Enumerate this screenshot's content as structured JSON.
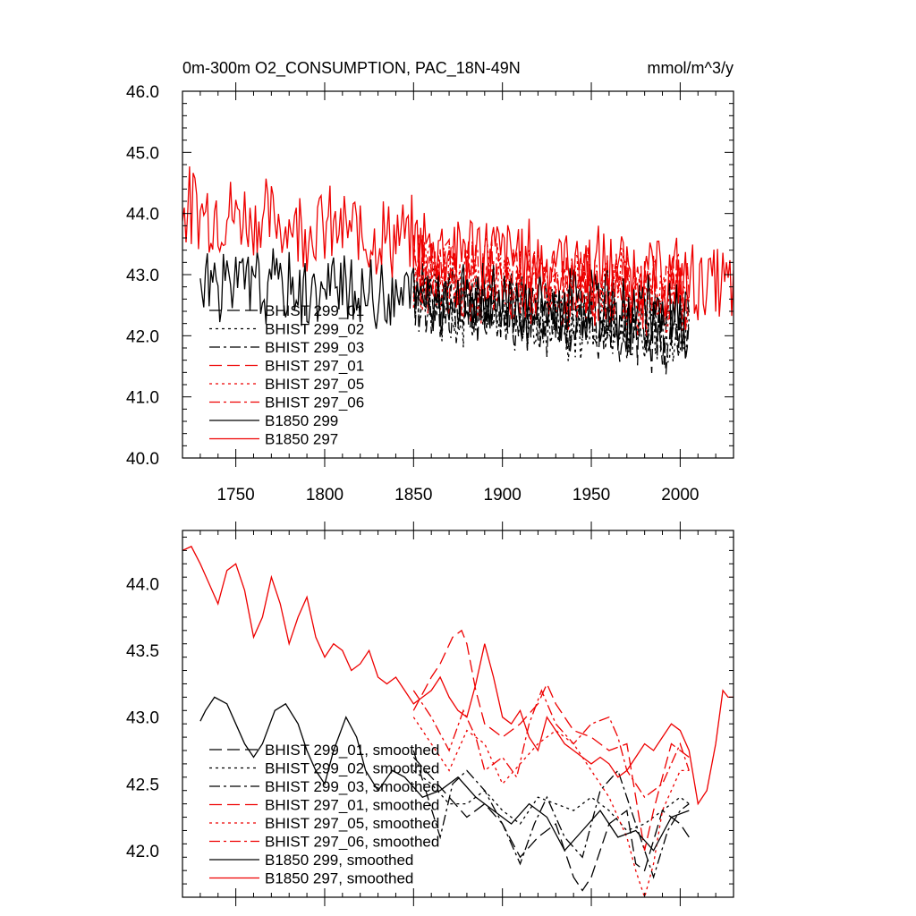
{
  "chart_data": [
    {
      "type": "line",
      "title_left": "0m-300m O2_CONSUMPTION, PAC_18N-49N",
      "title_right": "mmol/m^3/y",
      "xlim": [
        1720,
        2030
      ],
      "ylim": [
        40.0,
        46.0
      ],
      "yticks": [
        40.0,
        41.0,
        42.0,
        43.0,
        44.0,
        45.0,
        46.0
      ],
      "ytick_labels": [
        "40.0",
        "41.0",
        "42.0",
        "43.0",
        "44.0",
        "45.0",
        "46.0"
      ],
      "xticks": [
        1750,
        1800,
        1850,
        1900,
        1950,
        2000
      ],
      "xtick_labels": [
        "1750",
        "1800",
        "1850",
        "1900",
        "1950",
        "2000"
      ],
      "legend_position": "center-left",
      "series": [
        {
          "name": "BHIST 299_01",
          "color": "#000000",
          "dash": "dash",
          "x_start": 1850,
          "x_end": 2005,
          "base_start": 42.7,
          "base_end": 42.0,
          "amp": 0.55,
          "seed": 11
        },
        {
          "name": "BHIST 299_02",
          "color": "#000000",
          "dash": "dot",
          "x_start": 1850,
          "x_end": 2005,
          "base_start": 42.6,
          "base_end": 42.0,
          "amp": 0.55,
          "seed": 12
        },
        {
          "name": "BHIST 299_03",
          "color": "#000000",
          "dash": "dashdot",
          "x_start": 1850,
          "x_end": 2005,
          "base_start": 42.6,
          "base_end": 42.0,
          "amp": 0.55,
          "seed": 13
        },
        {
          "name": "BHIST 297_01",
          "color": "#ee0000",
          "dash": "dash",
          "x_start": 1850,
          "x_end": 2005,
          "base_start": 43.0,
          "base_end": 42.7,
          "amp": 0.6,
          "seed": 21
        },
        {
          "name": "BHIST 297_05",
          "color": "#ee0000",
          "dash": "dot",
          "x_start": 1850,
          "x_end": 2005,
          "base_start": 43.1,
          "base_end": 42.6,
          "amp": 0.6,
          "seed": 22
        },
        {
          "name": "BHIST 297_06",
          "color": "#ee0000",
          "dash": "dashdot",
          "x_start": 1850,
          "x_end": 2005,
          "base_start": 43.0,
          "base_end": 42.7,
          "amp": 0.6,
          "seed": 23
        },
        {
          "name": "B1850 299",
          "color": "#000000",
          "dash": "solid",
          "x_start": 1730,
          "x_end": 2005,
          "base_start": 42.9,
          "base_end": 42.3,
          "amp": 0.55,
          "seed": 31
        },
        {
          "name": "B1850 297",
          "color": "#ee0000",
          "dash": "solid",
          "x_start": 1720,
          "x_end": 2030,
          "base_start": 44.1,
          "base_end": 42.8,
          "amp": 0.6,
          "seed": 32
        }
      ]
    },
    {
      "type": "line",
      "xlim": [
        1720,
        2030
      ],
      "ylim": [
        41.65,
        44.4
      ],
      "yticks": [
        42.0,
        42.5,
        43.0,
        43.5,
        44.0
      ],
      "ytick_labels": [
        "42.0",
        "42.5",
        "43.0",
        "43.5",
        "44.0"
      ],
      "xticks": [
        1750,
        1800,
        1850,
        1900,
        1950,
        2000
      ],
      "legend_position": "bottom-left",
      "series": [
        {
          "name": "BHIST 299_01, smoothed",
          "color": "#000000",
          "dash": "dash",
          "points": [
            [
              1850,
              42.7
            ],
            [
              1860,
              42.55
            ],
            [
              1870,
              42.4
            ],
            [
              1880,
              42.25
            ],
            [
              1890,
              42.35
            ],
            [
              1900,
              42.2
            ],
            [
              1910,
              41.95
            ],
            [
              1920,
              42.1
            ],
            [
              1930,
              42.2
            ],
            [
              1940,
              41.8
            ],
            [
              1945,
              41.7
            ],
            [
              1950,
              41.8
            ],
            [
              1960,
              42.2
            ],
            [
              1970,
              42.3
            ],
            [
              1975,
              41.9
            ],
            [
              1980,
              41.85
            ],
            [
              1990,
              42.3
            ],
            [
              2000,
              42.2
            ],
            [
              2005,
              42.1
            ]
          ]
        },
        {
          "name": "BHIST 299_02, smoothed",
          "color": "#000000",
          "dash": "dot",
          "points": [
            [
              1850,
              42.6
            ],
            [
              1860,
              42.5
            ],
            [
              1870,
              42.35
            ],
            [
              1880,
              42.35
            ],
            [
              1890,
              42.45
            ],
            [
              1900,
              42.3
            ],
            [
              1910,
              42.2
            ],
            [
              1920,
              42.4
            ],
            [
              1930,
              42.35
            ],
            [
              1940,
              42.3
            ],
            [
              1950,
              42.4
            ],
            [
              1960,
              42.3
            ],
            [
              1970,
              42.15
            ],
            [
              1980,
              42.2
            ],
            [
              1990,
              42.3
            ],
            [
              2000,
              42.4
            ],
            [
              2005,
              42.35
            ]
          ]
        },
        {
          "name": "BHIST 299_03, smoothed",
          "color": "#000000",
          "dash": "dashdot",
          "points": [
            [
              1850,
              42.75
            ],
            [
              1858,
              42.4
            ],
            [
              1865,
              42.1
            ],
            [
              1872,
              42.5
            ],
            [
              1880,
              42.6
            ],
            [
              1890,
              42.45
            ],
            [
              1900,
              42.2
            ],
            [
              1910,
              41.9
            ],
            [
              1918,
              42.2
            ],
            [
              1925,
              42.4
            ],
            [
              1935,
              42.1
            ],
            [
              1945,
              41.95
            ],
            [
              1955,
              42.45
            ],
            [
              1965,
              42.6
            ],
            [
              1975,
              42.2
            ],
            [
              1985,
              41.8
            ],
            [
              1993,
              42.15
            ],
            [
              2000,
              42.3
            ],
            [
              2005,
              42.35
            ]
          ]
        },
        {
          "name": "BHIST 297_01, smoothed",
          "color": "#ee0000",
          "dash": "dash",
          "points": [
            [
              1850,
              43.05
            ],
            [
              1860,
              43.3
            ],
            [
              1865,
              43.4
            ],
            [
              1872,
              43.6
            ],
            [
              1877,
              43.65
            ],
            [
              1880,
              43.55
            ],
            [
              1885,
              43.2
            ],
            [
              1890,
              42.95
            ],
            [
              1900,
              42.85
            ],
            [
              1910,
              42.95
            ],
            [
              1920,
              43.1
            ],
            [
              1925,
              43.25
            ],
            [
              1930,
              43.1
            ],
            [
              1940,
              42.9
            ],
            [
              1950,
              42.85
            ],
            [
              1960,
              42.75
            ],
            [
              1970,
              42.8
            ],
            [
              1975,
              42.4
            ],
            [
              1980,
              42.0
            ],
            [
              1985,
              42.3
            ],
            [
              1990,
              42.55
            ],
            [
              1995,
              42.8
            ],
            [
              2000,
              42.75
            ],
            [
              2005,
              42.7
            ]
          ]
        },
        {
          "name": "BHIST 297_05, smoothed",
          "color": "#ee0000",
          "dash": "dot",
          "points": [
            [
              1850,
              43.0
            ],
            [
              1860,
              42.8
            ],
            [
              1870,
              42.6
            ],
            [
              1875,
              42.75
            ],
            [
              1880,
              42.9
            ],
            [
              1890,
              42.8
            ],
            [
              1900,
              42.5
            ],
            [
              1910,
              42.65
            ],
            [
              1920,
              42.8
            ],
            [
              1930,
              42.9
            ],
            [
              1940,
              42.8
            ],
            [
              1945,
              42.7
            ],
            [
              1950,
              42.6
            ],
            [
              1960,
              42.4
            ],
            [
              1970,
              42.1
            ],
            [
              1975,
              41.85
            ],
            [
              1980,
              41.65
            ],
            [
              1985,
              41.9
            ],
            [
              1990,
              42.3
            ],
            [
              2000,
              42.6
            ],
            [
              2005,
              42.6
            ]
          ]
        },
        {
          "name": "BHIST 297_06, smoothed",
          "color": "#ee0000",
          "dash": "dashdot",
          "points": [
            [
              1850,
              43.2
            ],
            [
              1860,
              43.0
            ],
            [
              1870,
              42.75
            ],
            [
              1878,
              43.05
            ],
            [
              1885,
              42.85
            ],
            [
              1890,
              42.6
            ],
            [
              1900,
              42.7
            ],
            [
              1908,
              42.55
            ],
            [
              1915,
              42.95
            ],
            [
              1922,
              43.2
            ],
            [
              1930,
              42.95
            ],
            [
              1940,
              42.8
            ],
            [
              1950,
              42.95
            ],
            [
              1960,
              43.0
            ],
            [
              1965,
              42.85
            ],
            [
              1970,
              42.6
            ],
            [
              1980,
              42.4
            ],
            [
              1990,
              42.5
            ],
            [
              2000,
              42.8
            ],
            [
              2005,
              42.6
            ]
          ]
        },
        {
          "name": "B1850 299, smoothed",
          "color": "#000000",
          "dash": "solid",
          "points": [
            [
              1730,
              42.97
            ],
            [
              1733,
              43.05
            ],
            [
              1738,
              43.15
            ],
            [
              1745,
              43.1
            ],
            [
              1750,
              42.95
            ],
            [
              1755,
              42.8
            ],
            [
              1760,
              42.7
            ],
            [
              1765,
              42.8
            ],
            [
              1772,
              43.05
            ],
            [
              1778,
              43.1
            ],
            [
              1785,
              42.95
            ],
            [
              1790,
              42.75
            ],
            [
              1795,
              42.6
            ],
            [
              1800,
              42.5
            ],
            [
              1805,
              42.75
            ],
            [
              1812,
              43.0
            ],
            [
              1818,
              42.85
            ],
            [
              1823,
              42.6
            ],
            [
              1830,
              42.45
            ],
            [
              1838,
              42.6
            ],
            [
              1845,
              42.55
            ],
            [
              1855,
              42.4
            ],
            [
              1865,
              42.45
            ],
            [
              1875,
              42.55
            ],
            [
              1885,
              42.4
            ],
            [
              1895,
              42.3
            ],
            [
              1905,
              42.2
            ],
            [
              1915,
              42.35
            ],
            [
              1925,
              42.25
            ],
            [
              1935,
              42.0
            ],
            [
              1945,
              42.15
            ],
            [
              1955,
              42.3
            ],
            [
              1965,
              42.1
            ],
            [
              1975,
              42.15
            ],
            [
              1985,
              42.0
            ],
            [
              1995,
              42.25
            ],
            [
              2005,
              42.3
            ]
          ]
        },
        {
          "name": "B1850 297, smoothed",
          "color": "#ee0000",
          "dash": "solid",
          "points": [
            [
              1720,
              44.25
            ],
            [
              1725,
              44.28
            ],
            [
              1730,
              44.15
            ],
            [
              1735,
              44.0
            ],
            [
              1740,
              43.85
            ],
            [
              1745,
              44.1
            ],
            [
              1750,
              44.15
            ],
            [
              1755,
              43.95
            ],
            [
              1760,
              43.6
            ],
            [
              1765,
              43.75
            ],
            [
              1770,
              44.05
            ],
            [
              1775,
              43.85
            ],
            [
              1780,
              43.55
            ],
            [
              1785,
              43.75
            ],
            [
              1790,
              43.9
            ],
            [
              1795,
              43.6
            ],
            [
              1800,
              43.45
            ],
            [
              1805,
              43.55
            ],
            [
              1810,
              43.5
            ],
            [
              1815,
              43.35
            ],
            [
              1820,
              43.4
            ],
            [
              1825,
              43.5
            ],
            [
              1830,
              43.3
            ],
            [
              1835,
              43.25
            ],
            [
              1840,
              43.3
            ],
            [
              1845,
              43.2
            ],
            [
              1850,
              43.1
            ],
            [
              1855,
              43.15
            ],
            [
              1860,
              43.2
            ],
            [
              1865,
              43.3
            ],
            [
              1870,
              43.15
            ],
            [
              1875,
              43.05
            ],
            [
              1880,
              43.0
            ],
            [
              1885,
              43.25
            ],
            [
              1890,
              43.55
            ],
            [
              1895,
              43.3
            ],
            [
              1900,
              43.0
            ],
            [
              1905,
              42.95
            ],
            [
              1910,
              43.05
            ],
            [
              1915,
              42.85
            ],
            [
              1920,
              42.75
            ],
            [
              1925,
              43.0
            ],
            [
              1930,
              42.9
            ],
            [
              1935,
              42.8
            ],
            [
              1940,
              42.75
            ],
            [
              1945,
              42.7
            ],
            [
              1950,
              42.65
            ],
            [
              1955,
              42.7
            ],
            [
              1960,
              42.65
            ],
            [
              1965,
              42.55
            ],
            [
              1970,
              42.6
            ],
            [
              1975,
              42.7
            ],
            [
              1980,
              42.8
            ],
            [
              1985,
              42.75
            ],
            [
              1990,
              42.85
            ],
            [
              1995,
              42.95
            ],
            [
              2000,
              42.9
            ],
            [
              2005,
              42.75
            ],
            [
              2010,
              42.35
            ],
            [
              2015,
              42.45
            ],
            [
              2020,
              42.8
            ],
            [
              2024,
              43.2
            ],
            [
              2027,
              43.15
            ],
            [
              2030,
              43.15
            ]
          ]
        }
      ]
    }
  ]
}
